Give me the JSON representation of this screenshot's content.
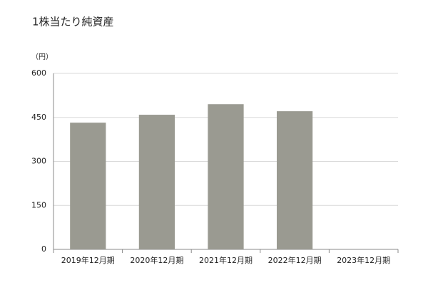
{
  "chart_data": {
    "type": "bar",
    "title": "1株当たり純資産",
    "y_unit": "（円）",
    "categories": [
      "2019年12月期",
      "2020年12月期",
      "2021年12月期",
      "2022年12月期",
      "2023年12月期"
    ],
    "values": [
      432,
      459,
      495,
      471,
      null
    ],
    "color": "#9a9a91",
    "ylim": [
      0,
      600
    ],
    "yticks": [
      0,
      150,
      300,
      450,
      600
    ],
    "grid": true
  }
}
